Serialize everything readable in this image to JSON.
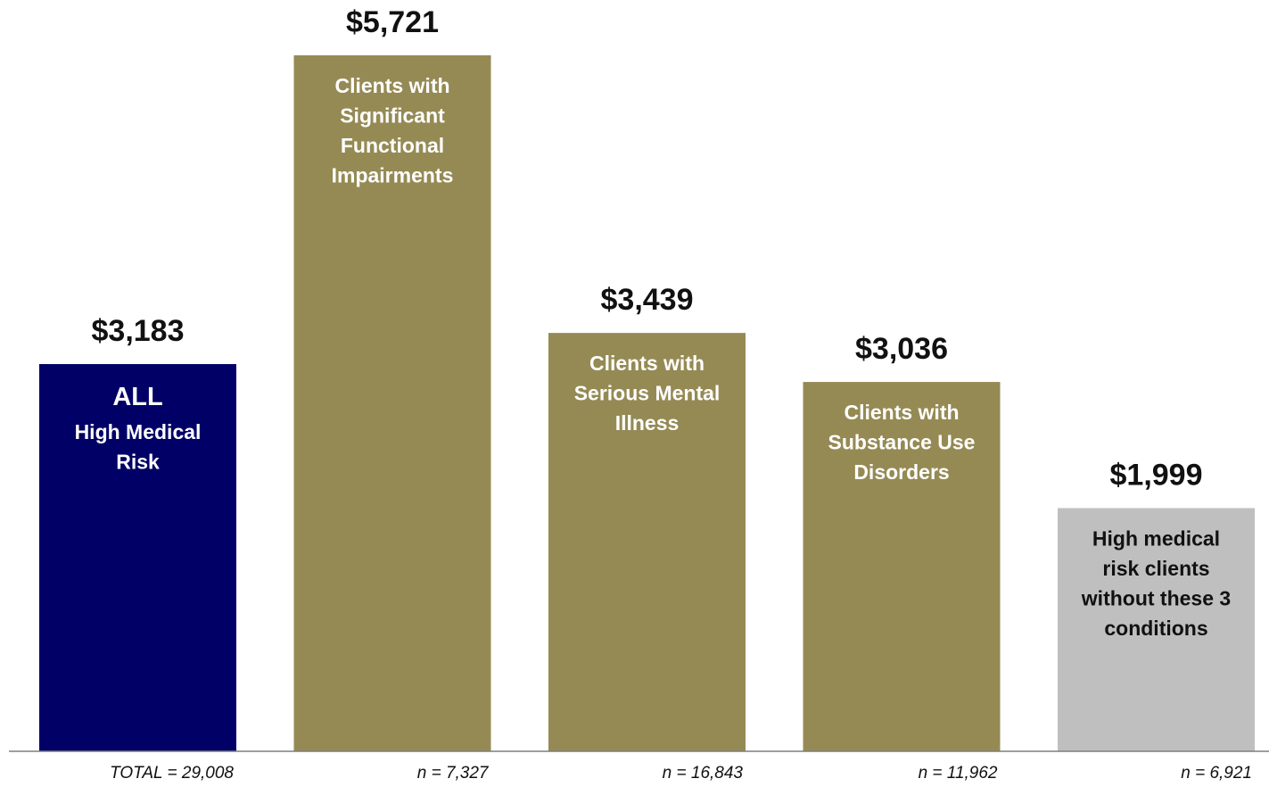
{
  "chart_data": {
    "type": "bar",
    "title": "",
    "xlabel": "",
    "ylabel": "",
    "ylim": [
      0,
      5721
    ],
    "grid": false,
    "legend": "none",
    "categories": [
      "ALL High Medical Risk",
      "Clients with Significant Functional Impairments",
      "Clients with Serious Mental Illness",
      "Clients with Substance Use Disorders",
      "High medical risk clients without these 3 conditions"
    ],
    "values": [
      3183,
      5721,
      3439,
      3036,
      1999
    ],
    "value_labels": [
      "$3,183",
      "$5,721",
      "$3,439",
      "$3,036",
      "$1,999"
    ],
    "bar_labels": [
      {
        "headline": "ALL",
        "lines": [
          "High Medical",
          "Risk"
        ]
      },
      {
        "headline": "",
        "lines": [
          "Clients with",
          "Significant",
          "Functional",
          "Impairments"
        ]
      },
      {
        "headline": "",
        "lines": [
          "Clients with",
          "Serious Mental",
          "Illness"
        ]
      },
      {
        "headline": "",
        "lines": [
          "Clients with",
          "Substance Use",
          "Disorders"
        ]
      },
      {
        "headline": "",
        "lines": [
          "High medical",
          "risk clients",
          "without these 3",
          "conditions"
        ]
      }
    ],
    "counts": [
      "TOTAL = 29,008",
      "n = 7,327",
      "n = 16,843",
      "n = 11,962",
      "n = 6,921"
    ],
    "colors": [
      "#000066",
      "#958a54",
      "#958a54",
      "#958a54",
      "#bfbfbf"
    ],
    "label_colors": [
      "#ffffff",
      "#ffffff",
      "#ffffff",
      "#ffffff",
      "#111111"
    ],
    "axis_color": "#7f7f7f"
  }
}
